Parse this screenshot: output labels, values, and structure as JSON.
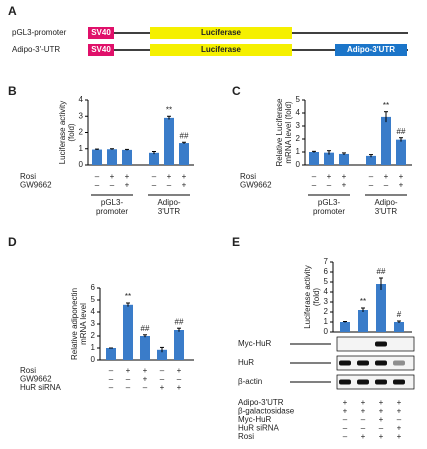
{
  "panel_a": {
    "letter": "A",
    "constructs": [
      {
        "name": "pGL3-promoter",
        "segments": [
          "SV40",
          "Luciferase"
        ]
      },
      {
        "name": "Adipo-3'-UTR",
        "segments": [
          "SV40",
          "Luciferase",
          "Adipo-3'UTR"
        ]
      }
    ]
  },
  "chart_data": [
    {
      "type": "bar",
      "letter": "B",
      "y_label": [
        "Luciferase activity",
        "(fold)"
      ],
      "color": "#3a7cc9",
      "categories": [
        null,
        null,
        null,
        null,
        null,
        null
      ],
      "values": [
        0.95,
        0.97,
        0.93,
        0.75,
        2.9,
        1.35
      ],
      "errors": [
        0.03,
        0.03,
        0.03,
        0.08,
        0.1,
        0.05
      ],
      "annotations": [
        null,
        null,
        null,
        null,
        "**",
        "##"
      ],
      "ylim": [
        0,
        4
      ],
      "yticks": [
        0,
        1,
        2,
        3,
        4
      ],
      "rows": [
        {
          "name": "Rosi",
          "marks": [
            "–",
            "+",
            "+",
            "–",
            "+",
            "+"
          ]
        },
        {
          "name": "GW9662",
          "marks": [
            "–",
            "–",
            "+",
            "–",
            "–",
            "+"
          ]
        }
      ],
      "groups": [
        [
          "pGL3-",
          "promoter"
        ],
        [
          "Adipo-",
          "3'UTR"
        ]
      ]
    },
    {
      "type": "bar",
      "letter": "C",
      "y_label": [
        "Relative Luciferase",
        "mRNA level (fold)"
      ],
      "color": "#3a7cc9",
      "categories": [
        null,
        null,
        null,
        null,
        null,
        null
      ],
      "values": [
        1.0,
        0.95,
        0.85,
        0.7,
        3.7,
        1.95
      ],
      "errors": [
        0.05,
        0.15,
        0.08,
        0.1,
        0.4,
        0.15
      ],
      "annotations": [
        null,
        null,
        null,
        null,
        "**",
        "##"
      ],
      "ylim": [
        0,
        5
      ],
      "yticks": [
        0,
        1,
        2,
        3,
        4,
        5
      ],
      "rows": [
        {
          "name": "Rosi",
          "marks": [
            "–",
            "+",
            "+",
            "–",
            "+",
            "+"
          ]
        },
        {
          "name": "GW9662",
          "marks": [
            "–",
            "–",
            "+",
            "–",
            "–",
            "+"
          ]
        }
      ],
      "groups": [
        [
          "pGL3-",
          "promoter"
        ],
        [
          "Adipo-",
          "3'UTR"
        ]
      ]
    },
    {
      "type": "bar",
      "letter": "D",
      "y_label": [
        "Relative adiponectin",
        "mRNA level"
      ],
      "color": "#3a7cc9",
      "categories": [
        null,
        null,
        null,
        null,
        null
      ],
      "values": [
        1.0,
        4.6,
        2.0,
        0.85,
        2.5
      ],
      "errors": [
        0,
        0.15,
        0.1,
        0.2,
        0.15
      ],
      "annotations": [
        null,
        "**",
        "##",
        null,
        "##"
      ],
      "ylim": [
        0,
        6
      ],
      "yticks": [
        0,
        1,
        2,
        3,
        4,
        5,
        6
      ],
      "rows": [
        {
          "name": "Rosi",
          "marks": [
            "–",
            "+",
            "+",
            "–",
            "+"
          ]
        },
        {
          "name": "GW9662",
          "marks": [
            "–",
            "–",
            "+",
            "–",
            "–"
          ]
        },
        {
          "name": "HuR siRNA",
          "marks": [
            "–",
            "–",
            "–",
            "+",
            "+"
          ]
        }
      ]
    },
    {
      "type": "bar",
      "letter": "E",
      "y_label": [
        "Luciferase activity",
        "(fold)"
      ],
      "color": "#3a7cc9",
      "categories": [
        null,
        null,
        null,
        null
      ],
      "values": [
        1.0,
        2.2,
        4.8,
        1.0
      ],
      "errors": [
        0.05,
        0.2,
        0.6,
        0.1
      ],
      "annotations": [
        null,
        "**",
        "##",
        "#"
      ],
      "ylim": [
        0,
        7
      ],
      "yticks": [
        0,
        1,
        2,
        3,
        4,
        5,
        6,
        7
      ],
      "blots": [
        "Myc-HuR",
        "HuR",
        "β-actin"
      ],
      "rows": [
        {
          "name": "Adipo-3'UTR",
          "marks": [
            "+",
            "+",
            "+",
            "+"
          ]
        },
        {
          "name": "β-galactosidase",
          "marks": [
            "+",
            "+",
            "+",
            "+"
          ]
        },
        {
          "name": "Myc-HuR",
          "marks": [
            "–",
            "–",
            "+",
            "–"
          ]
        },
        {
          "name": "HuR siRNA",
          "marks": [
            "–",
            "–",
            "–",
            "+"
          ]
        },
        {
          "name": "Rosi",
          "marks": [
            "–",
            "+",
            "+",
            "+"
          ]
        }
      ]
    }
  ]
}
